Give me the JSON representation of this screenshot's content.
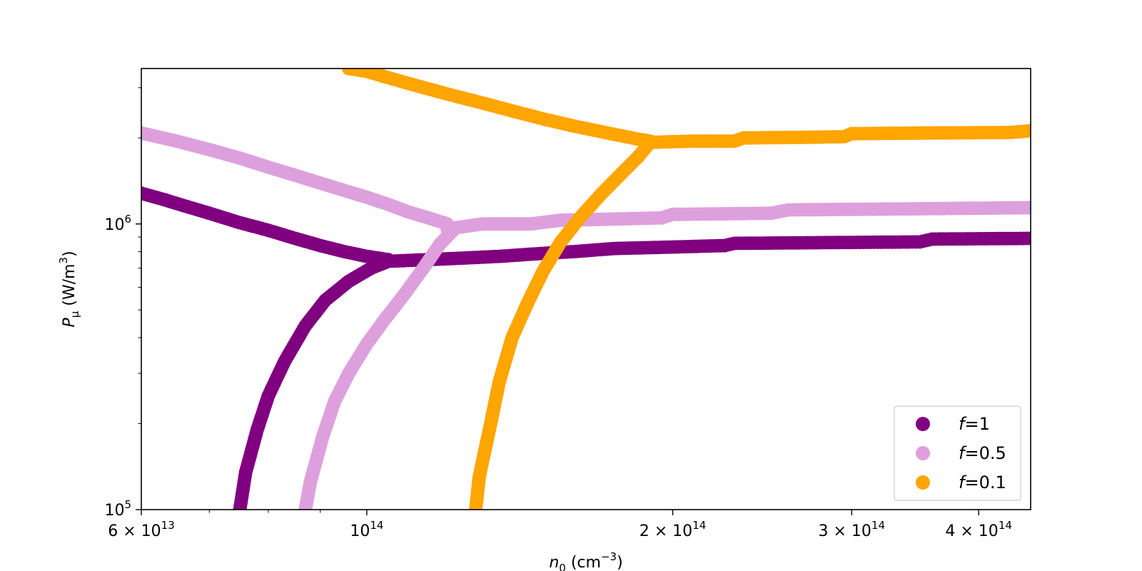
{
  "chart_data": {
    "type": "scatter",
    "title": "",
    "x_scale": "log",
    "y_scale": "log",
    "xlim": [
      60000000000000.0,
      450000000000000.0
    ],
    "ylim": [
      100000.0,
      3500000.0
    ],
    "grid": false,
    "legend_placement": "lower-right",
    "xlabel": {
      "base": "n",
      "sub": "0",
      "unit_pre": " (cm",
      "unit_sup": "−3",
      "unit_post": ")"
    },
    "ylabel": {
      "base": "P",
      "sub": "μ",
      "unit_pre": " (W/m",
      "unit_sup": "3",
      "unit_post": ")"
    },
    "x_ticks": [
      {
        "value": 60000000000000.0,
        "mant": "6 × 10",
        "exp": "13"
      },
      {
        "value": 100000000000000.0,
        "mant": "10",
        "exp": "14"
      },
      {
        "value": 200000000000000.0,
        "mant": "2 × 10",
        "exp": "14"
      },
      {
        "value": 300000000000000.0,
        "mant": "3 × 10",
        "exp": "14"
      },
      {
        "value": 400000000000000.0,
        "mant": "4 × 10",
        "exp": "14"
      }
    ],
    "y_ticks": [
      {
        "value": 100000.0,
        "mant": "10",
        "exp": "5"
      },
      {
        "value": 1000000.0,
        "mant": "10",
        "exp": "6"
      }
    ],
    "series": [
      {
        "name": "f=1",
        "legend_var": "f",
        "legend_rest": "=1",
        "color": "#800080",
        "decreasing": [
          [
            60000000000000.0,
            1280000.0
          ],
          [
            63000000000000.0,
            1220000.0
          ],
          [
            66000000000000.0,
            1160000.0
          ],
          [
            70000000000000.0,
            1090000.0
          ],
          [
            75000000000000.0,
            1010000.0
          ],
          [
            80000000000000.0,
            950000.0
          ],
          [
            85000000000000.0,
            890000.0
          ],
          [
            90000000000000.0,
            840000.0
          ],
          [
            95000000000000.0,
            800000.0
          ],
          [
            100000000000000.0,
            770000.0
          ],
          [
            105000000000000.0,
            750000.0
          ]
        ],
        "plateau": [
          [
            105000000000000.0,
            740000.0
          ],
          [
            115000000000000.0,
            750000.0
          ],
          [
            125000000000000.0,
            760000.0
          ],
          [
            135000000000000.0,
            770000.0
          ],
          [
            150000000000000.0,
            790000.0
          ],
          [
            160000000000000.0,
            800000.0
          ],
          [
            175000000000000.0,
            820000.0
          ],
          [
            200000000000000.0,
            830000.0
          ],
          [
            225000000000000.0,
            840000.0
          ],
          [
            230000000000000.0,
            855000.0
          ],
          [
            280000000000000.0,
            860000.0
          ],
          [
            350000000000000.0,
            865000.0
          ],
          [
            360000000000000.0,
            885000.0
          ],
          [
            450000000000000.0,
            890000.0
          ]
        ],
        "rising": [
          [
            75000000000000.0,
            100000.0
          ],
          [
            76000000000000.0,
            135000.0
          ],
          [
            78000000000000.0,
            190000.0
          ],
          [
            80000000000000.0,
            250000.0
          ],
          [
            83000000000000.0,
            330000.0
          ],
          [
            87000000000000.0,
            440000.0
          ],
          [
            91000000000000.0,
            540000.0
          ],
          [
            96000000000000.0,
            630000.0
          ],
          [
            101000000000000.0,
            700000.0
          ],
          [
            105000000000000.0,
            740000.0
          ]
        ]
      },
      {
        "name": "f=0.5",
        "legend_var": "f",
        "legend_rest": "=0.5",
        "color": "#dda0dd",
        "decreasing": [
          [
            60000000000000.0,
            2080000.0
          ],
          [
            65000000000000.0,
            1950000.0
          ],
          [
            70000000000000.0,
            1820000.0
          ],
          [
            75000000000000.0,
            1700000.0
          ],
          [
            80000000000000.0,
            1580000.0
          ],
          [
            85000000000000.0,
            1480000.0
          ],
          [
            90000000000000.0,
            1390000.0
          ],
          [
            95000000000000.0,
            1310000.0
          ],
          [
            100000000000000.0,
            1240000.0
          ],
          [
            105000000000000.0,
            1170000.0
          ],
          [
            110000000000000.0,
            1100000.0
          ],
          [
            115000000000000.0,
            1050000.0
          ],
          [
            120000000000000.0,
            1000000.0
          ]
        ],
        "plateau": [
          [
            120000000000000.0,
            960000.0
          ],
          [
            130000000000000.0,
            1000000.0
          ],
          [
            145000000000000.0,
            1000000.0
          ],
          [
            155000000000000.0,
            1030000.0
          ],
          [
            175000000000000.0,
            1040000.0
          ],
          [
            195000000000000.0,
            1050000.0
          ],
          [
            200000000000000.0,
            1080000.0
          ],
          [
            250000000000000.0,
            1090000.0
          ],
          [
            260000000000000.0,
            1120000.0
          ],
          [
            350000000000000.0,
            1130000.0
          ],
          [
            450000000000000.0,
            1140000.0
          ]
        ],
        "rising": [
          [
            87000000000000.0,
            100000.0
          ],
          [
            88000000000000.0,
            125000.0
          ],
          [
            90500000000000.0,
            180000.0
          ],
          [
            93000000000000.0,
            240000.0
          ],
          [
            96000000000000.0,
            300000.0
          ],
          [
            100000000000000.0,
            380000.0
          ],
          [
            104000000000000.0,
            460000.0
          ],
          [
            109000000000000.0,
            570000.0
          ],
          [
            114000000000000.0,
            710000.0
          ],
          [
            118000000000000.0,
            850000.0
          ],
          [
            122000000000000.0,
            960000.0
          ]
        ]
      },
      {
        "name": "f=0.1",
        "legend_var": "f",
        "legend_rest": "=0.1",
        "color": "#ffa500",
        "decreasing": [
          [
            96000000000000.0,
            3500000.0
          ],
          [
            100000000000000.0,
            3420000.0
          ],
          [
            105000000000000.0,
            3250000.0
          ],
          [
            110000000000000.0,
            3100000.0
          ],
          [
            120000000000000.0,
            2850000.0
          ],
          [
            130000000000000.0,
            2650000.0
          ],
          [
            140000000000000.0,
            2470000.0
          ],
          [
            150000000000000.0,
            2320000.0
          ],
          [
            160000000000000.0,
            2200000.0
          ],
          [
            175000000000000.0,
            2060000.0
          ],
          [
            185000000000000.0,
            1980000.0
          ],
          [
            190000000000000.0,
            1950000.0
          ]
        ],
        "plateau": [
          [
            190000000000000.0,
            1930000.0
          ],
          [
            210000000000000.0,
            1950000.0
          ],
          [
            230000000000000.0,
            1950000.0
          ],
          [
            235000000000000.0,
            2000000.0
          ],
          [
            270000000000000.0,
            2010000.0
          ],
          [
            295000000000000.0,
            2020000.0
          ],
          [
            300000000000000.0,
            2070000.0
          ],
          [
            350000000000000.0,
            2080000.0
          ],
          [
            430000000000000.0,
            2090000.0
          ],
          [
            450000000000000.0,
            2120000.0
          ]
        ],
        "rising": [
          [
            128000000000000.0,
            100000.0
          ],
          [
            129000000000000.0,
            130000.0
          ],
          [
            132000000000000.0,
            190000.0
          ],
          [
            135000000000000.0,
            280000.0
          ],
          [
            139000000000000.0,
            400000.0
          ],
          [
            144000000000000.0,
            530000.0
          ],
          [
            149000000000000.0,
            680000.0
          ],
          [
            155000000000000.0,
            860000.0
          ],
          [
            162000000000000.0,
            1050000.0
          ],
          [
            170000000000000.0,
            1270000.0
          ],
          [
            178000000000000.0,
            1500000.0
          ],
          [
            185000000000000.0,
            1720000.0
          ],
          [
            190000000000000.0,
            1930000.0
          ]
        ]
      }
    ]
  }
}
